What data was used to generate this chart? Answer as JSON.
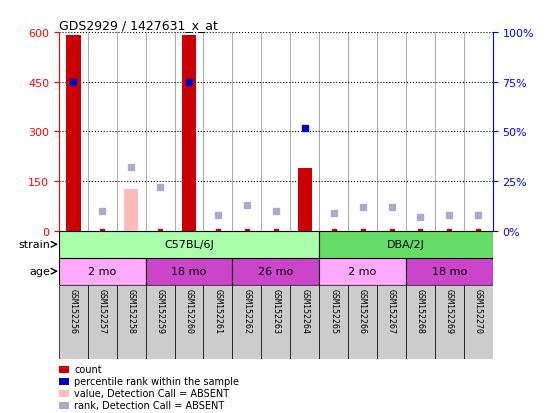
{
  "title": "GDS2929 / 1427631_x_at",
  "samples": [
    "GSM152256",
    "GSM152257",
    "GSM152258",
    "GSM152259",
    "GSM152260",
    "GSM152261",
    "GSM152262",
    "GSM152263",
    "GSM152264",
    "GSM152265",
    "GSM152266",
    "GSM152267",
    "GSM152268",
    "GSM152269",
    "GSM152270"
  ],
  "count_values": [
    590,
    0,
    0,
    0,
    590,
    0,
    0,
    0,
    190,
    0,
    0,
    0,
    0,
    0,
    0
  ],
  "value_absent_vals": [
    0,
    0,
    125,
    0,
    0,
    0,
    0,
    0,
    0,
    0,
    0,
    0,
    0,
    0,
    0
  ],
  "rank_values_pct": [
    75,
    10,
    0,
    0,
    75,
    7,
    13,
    10,
    52,
    9,
    12,
    12,
    7,
    8,
    8
  ],
  "rank_absent": [
    false,
    true,
    true,
    true,
    false,
    true,
    true,
    true,
    false,
    true,
    true,
    true,
    true,
    true,
    true
  ],
  "value_absent": [
    false,
    false,
    true,
    false,
    false,
    false,
    false,
    false,
    false,
    false,
    false,
    false,
    false,
    false,
    false
  ],
  "rank_absent_vals_pct": [
    0,
    10,
    32,
    22,
    0,
    8,
    13,
    10,
    0,
    9,
    12,
    12,
    7,
    8,
    8
  ],
  "ylim": [
    0,
    600
  ],
  "y2lim": [
    0,
    100
  ],
  "yticks": [
    0,
    150,
    300,
    450,
    600
  ],
  "y2ticks": [
    0,
    25,
    50,
    75,
    100
  ],
  "bar_color": "#cc0000",
  "bar_absent_color": "#ffbbbb",
  "rank_color": "#0000cc",
  "rank_absent_color": "#aaaacc",
  "bg_color": "#cccccc",
  "strain_c57_color": "#aaffaa",
  "strain_dba_color": "#66dd66",
  "age_light_color": "#ffaaff",
  "age_dark_color": "#cc44cc",
  "strain_c57_label": "C57BL/6J",
  "strain_dba_label": "DBA/2J",
  "strain_c57_span": [
    0,
    9
  ],
  "strain_dba_span": [
    9,
    15
  ],
  "age_groups": [
    {
      "label": "2 mo",
      "start": 0,
      "end": 3,
      "dark": false
    },
    {
      "label": "18 mo",
      "start": 3,
      "end": 6,
      "dark": true
    },
    {
      "label": "26 mo",
      "start": 6,
      "end": 9,
      "dark": true
    },
    {
      "label": "2 mo",
      "start": 9,
      "end": 12,
      "dark": false
    },
    {
      "label": "18 mo",
      "start": 12,
      "end": 15,
      "dark": true
    }
  ],
  "legend_items": [
    {
      "color": "#cc0000",
      "label": "count"
    },
    {
      "color": "#0000cc",
      "label": "percentile rank within the sample"
    },
    {
      "color": "#ffbbbb",
      "label": "value, Detection Call = ABSENT"
    },
    {
      "color": "#aaaacc",
      "label": "rank, Detection Call = ABSENT"
    }
  ]
}
